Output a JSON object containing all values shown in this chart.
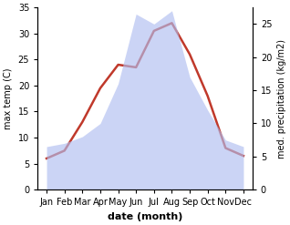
{
  "months": [
    "Jan",
    "Feb",
    "Mar",
    "Apr",
    "May",
    "Jun",
    "Jul",
    "Aug",
    "Sep",
    "Oct",
    "Nov",
    "Dec"
  ],
  "month_indices": [
    0,
    1,
    2,
    3,
    4,
    5,
    6,
    7,
    8,
    9,
    10,
    11
  ],
  "temperature": [
    6.0,
    7.5,
    13.0,
    19.5,
    24.0,
    23.5,
    30.5,
    32.0,
    26.0,
    18.0,
    8.0,
    6.5
  ],
  "precipitation": [
    6.5,
    7.0,
    8.0,
    10.0,
    16.0,
    26.5,
    25.0,
    27.0,
    17.0,
    12.0,
    7.5,
    6.5
  ],
  "temp_color": "#c0392b",
  "precip_fill_color": "#b0bef0",
  "precip_fill_alpha": 0.65,
  "temp_ylim": [
    0,
    35
  ],
  "precip_ylim": [
    0,
    27.5
  ],
  "temp_yticks": [
    0,
    5,
    10,
    15,
    20,
    25,
    30,
    35
  ],
  "precip_yticks": [
    0,
    5,
    10,
    15,
    20,
    25
  ],
  "ylabel_left": "max temp (C)",
  "ylabel_right": "med. precipitation (kg/m2)",
  "xlabel": "date (month)",
  "background_color": "#ffffff",
  "line_width": 1.8,
  "xlabel_fontsize": 8,
  "ylabel_fontsize": 7,
  "tick_fontsize": 7
}
